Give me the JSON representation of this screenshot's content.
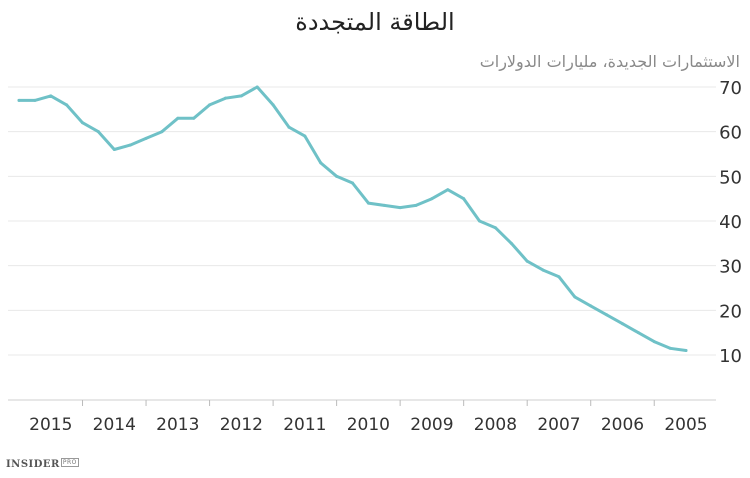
{
  "chart_data": {
    "type": "line",
    "title": "الطاقة المتجددة",
    "ylabel": "الاستثمارات الجديدة، مليارات الدولارات",
    "xlabel": "",
    "ylim": [
      0,
      75
    ],
    "yticks": [
      10,
      20,
      30,
      40,
      50,
      60,
      70
    ],
    "x_reversed": true,
    "x_range": [
      2016.0,
      2004.75
    ],
    "x_ticks": [
      {
        "label": "2015",
        "x": 2015.5
      },
      {
        "label": "2014",
        "x": 2014.5
      },
      {
        "label": "2013",
        "x": 2013.5
      },
      {
        "label": "2012",
        "x": 2012.5
      },
      {
        "label": "2011",
        "x": 2011.5
      },
      {
        "label": "2010",
        "x": 2010.5
      },
      {
        "label": "2009",
        "x": 2009.5
      },
      {
        "label": "2008",
        "x": 2008.5
      },
      {
        "label": "2007",
        "x": 2007.5
      },
      {
        "label": "2006",
        "x": 2006.5
      },
      {
        "label": "2005",
        "x": 2005.5
      }
    ],
    "grid": true,
    "series": [
      {
        "name": "",
        "color": "#6fc1c7",
        "x": [
          2016.0,
          2015.75,
          2015.5,
          2015.25,
          2015.0,
          2014.75,
          2014.5,
          2014.25,
          2014.0,
          2013.75,
          2013.5,
          2013.25,
          2013.0,
          2012.75,
          2012.5,
          2012.25,
          2012.0,
          2011.75,
          2011.5,
          2011.25,
          2011.0,
          2010.75,
          2010.5,
          2010.25,
          2010.0,
          2009.75,
          2009.5,
          2009.25,
          2009.0,
          2008.75,
          2008.5,
          2008.25,
          2008.0,
          2007.75,
          2007.5,
          2007.25,
          2007.0,
          2006.75,
          2006.5,
          2006.25,
          2006.0,
          2005.75,
          2005.5
        ],
        "y": [
          67,
          67,
          68,
          66,
          62,
          60,
          56,
          57,
          58.5,
          60,
          63,
          63,
          66,
          67.5,
          68,
          70,
          66,
          61,
          59,
          53,
          50,
          48.5,
          44,
          43.5,
          43,
          43.5,
          45,
          47,
          45,
          40,
          38.5,
          35,
          31,
          29,
          27.5,
          23,
          21,
          19,
          17,
          15,
          13,
          11.5,
          11
        ]
      }
    ]
  },
  "branding": {
    "name": "INSIDER",
    "suffix": "PRO"
  }
}
